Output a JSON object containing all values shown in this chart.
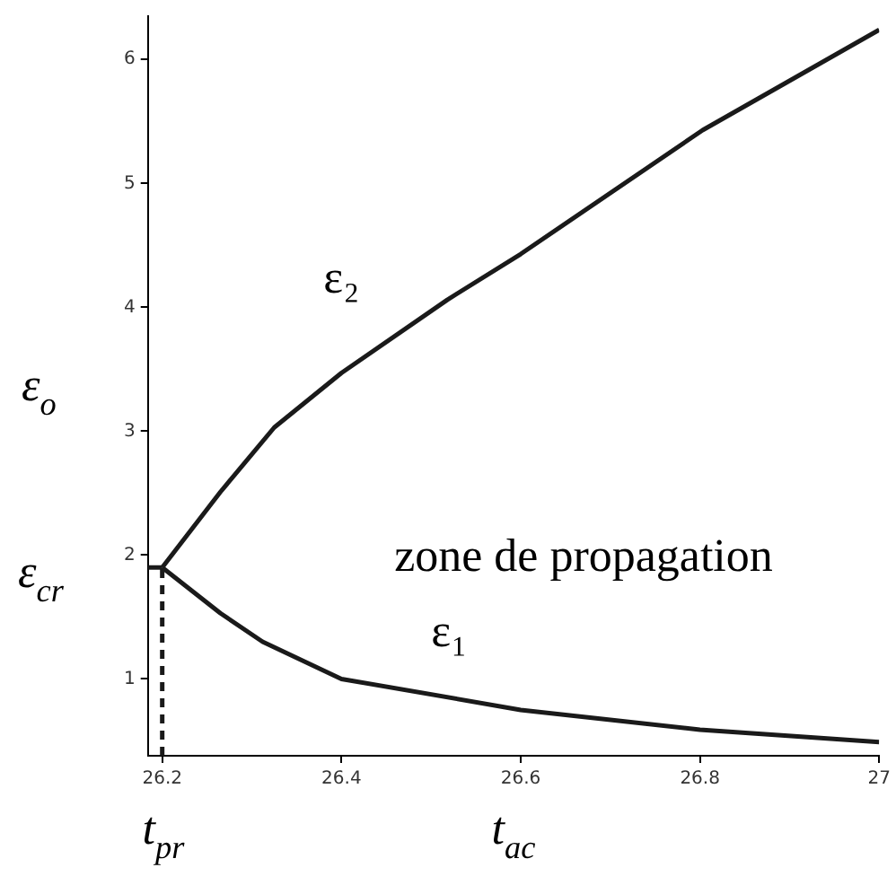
{
  "chart_data": {
    "type": "line",
    "xlabel": "t$_{ac}$",
    "ylabel": "ε$_{o}$",
    "xlim": [
      26.184,
      27
    ],
    "ylim": [
      0.38,
      6.35
    ],
    "xticks": [
      26.2,
      26.4,
      26.6,
      26.8,
      27
    ],
    "yticks": [
      1,
      2,
      3,
      4,
      5,
      6
    ],
    "grid": false,
    "legend": false,
    "marker": "none",
    "series": [
      {
        "name": "ε₂",
        "color": "#1a1a1a",
        "x": [
          26.2,
          26.265,
          26.325,
          26.4,
          26.518,
          26.6,
          26.803,
          27
        ],
        "values": [
          1.9,
          2.51,
          3.03,
          3.47,
          4.06,
          4.43,
          5.43,
          6.24
        ]
      },
      {
        "name": "ε₁",
        "color": "#1a1a1a",
        "x": [
          26.2,
          26.265,
          26.312,
          26.4,
          26.6,
          26.8,
          27
        ],
        "values": [
          1.9,
          1.53,
          1.3,
          1.0,
          0.75,
          0.59,
          0.49
        ]
      },
      {
        "color": "#1a1a1a",
        "line_style": "dashed",
        "x": [
          26.2,
          26.2
        ],
        "values": [
          0.38,
          1.9
        ]
      },
      {
        "color": "#1a1a1a",
        "x": [
          26.184,
          26.2
        ],
        "values": [
          1.9,
          1.9
        ]
      }
    ],
    "annotations": [
      "zone de propagation",
      "ε$_{cr}$",
      "t$_{pr}$"
    ]
  }
}
